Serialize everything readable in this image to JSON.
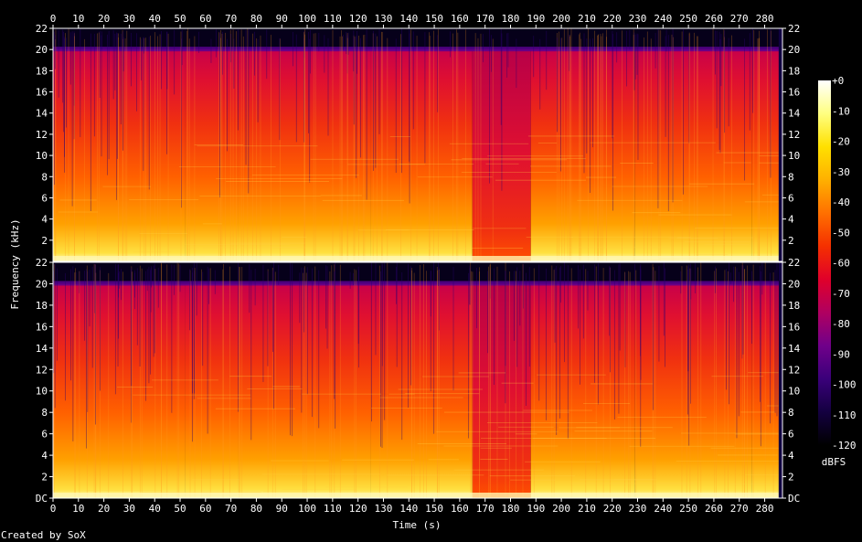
{
  "credit": "Created by SoX",
  "chart_data": {
    "type": "heatmap",
    "subtype": "spectrogram",
    "xlabel": "Time (s)",
    "ylabel": "Frequency (kHz)",
    "colorbar_label": "dBFS",
    "xlim": [
      0,
      287
    ],
    "ylim_khz": [
      0,
      22
    ],
    "x_ticks": [
      "0",
      "10",
      "20",
      "30",
      "40",
      "50",
      "60",
      "70",
      "80",
      "90",
      "100",
      "110",
      "120",
      "130",
      "140",
      "150",
      "160",
      "170",
      "180",
      "190",
      "200",
      "210",
      "220",
      "230",
      "240",
      "250",
      "260",
      "270",
      "280"
    ],
    "y_ticks_top": [
      "22",
      "20",
      "18",
      "16",
      "14",
      "12",
      "10",
      "8",
      "6",
      "4",
      "2"
    ],
    "y_ticks_bottom": [
      "22",
      "20",
      "18",
      "16",
      "14",
      "12",
      "10",
      "8",
      "6",
      "4",
      "2",
      "DC"
    ],
    "colorbar_ticks": [
      "+0",
      "-10",
      "-20",
      "-30",
      "-40",
      "-50",
      "-60",
      "-70",
      "-80",
      "-90",
      "-100",
      "-110",
      "-120"
    ],
    "channels": 2,
    "cutoff_khz": 20,
    "colorbar_colors": [
      "#ffffff",
      "#ffff80",
      "#ffe000",
      "#ffb000",
      "#ff7000",
      "#f53000",
      "#e0002a",
      "#b00060",
      "#70008a",
      "#3a007a",
      "#140040",
      "#000000"
    ],
    "segments_time_s": [
      0,
      52,
      73,
      125,
      165,
      188,
      229,
      275,
      287
    ],
    "segment_intensity": [
      0.82,
      0.7,
      0.84,
      0.72,
      0.55,
      0.74,
      0.72,
      0.8
    ]
  }
}
